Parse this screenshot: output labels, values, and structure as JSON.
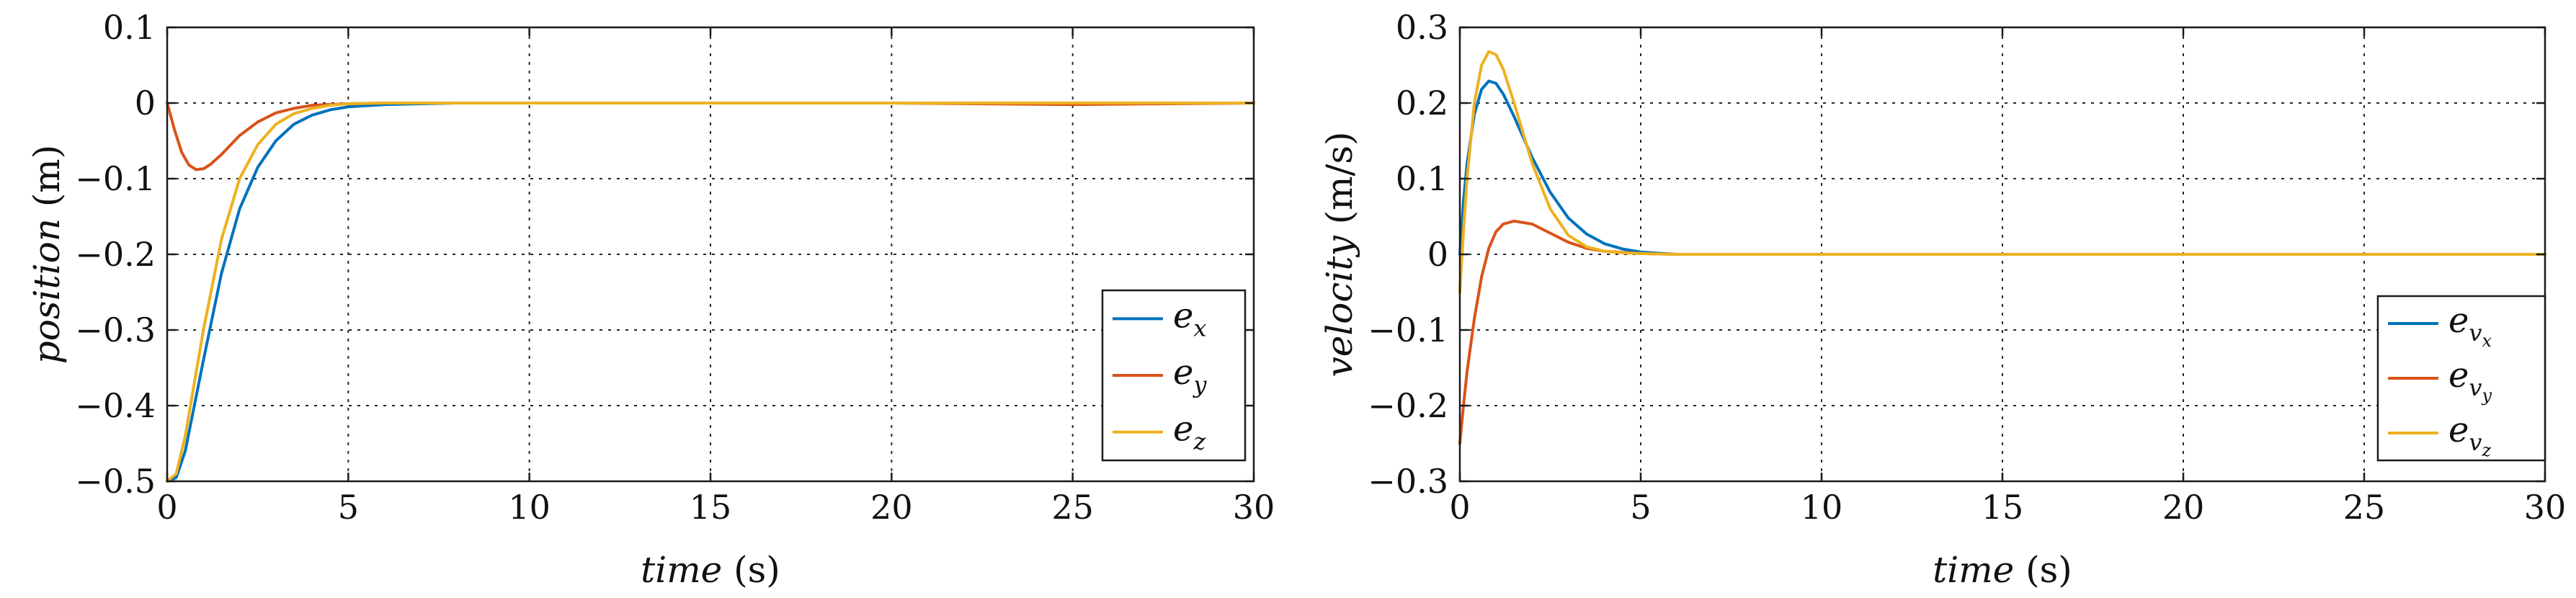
{
  "chart_data": [
    {
      "type": "line",
      "title": "",
      "xlabel": {
        "italic": "time",
        "unit": "(s)"
      },
      "ylabel": {
        "italic": "position",
        "unit": "(m)"
      },
      "xlim": [
        0,
        30
      ],
      "ylim": [
        -0.5,
        0.1
      ],
      "xticks": [
        0,
        5,
        10,
        15,
        20,
        25,
        30
      ],
      "yticks": [
        0.1,
        0,
        -0.1,
        -0.2,
        -0.3,
        -0.4,
        -0.5
      ],
      "xtick_labels": [
        "0",
        "5",
        "10",
        "15",
        "20",
        "25",
        "30"
      ],
      "ytick_labels": [
        "0.1",
        "0",
        "−0.1",
        "−0.2",
        "−0.3",
        "−0.4",
        "−0.5"
      ],
      "grid": true,
      "legend": "bottom-right",
      "series": [
        {
          "name": "e",
          "subscript": "x",
          "color": "#0072BD",
          "x": [
            0,
            0.25,
            0.5,
            0.75,
            1,
            1.5,
            2,
            2.5,
            3,
            3.5,
            4,
            4.5,
            5,
            6,
            7,
            8,
            10,
            12,
            15,
            20,
            25,
            30
          ],
          "y": [
            -0.5,
            -0.495,
            -0.46,
            -0.4,
            -0.34,
            -0.225,
            -0.14,
            -0.085,
            -0.05,
            -0.028,
            -0.016,
            -0.009,
            -0.005,
            -0.002,
            -0.001,
            0,
            0,
            0,
            0,
            0,
            -0.001,
            0
          ]
        },
        {
          "name": "e",
          "subscript": "y",
          "color": "#D95319",
          "x": [
            0,
            0.2,
            0.4,
            0.6,
            0.8,
            1,
            1.2,
            1.5,
            2,
            2.5,
            3,
            3.5,
            4,
            5,
            6,
            8,
            10,
            15,
            20,
            25,
            30
          ],
          "y": [
            0,
            -0.035,
            -0.065,
            -0.082,
            -0.088,
            -0.087,
            -0.081,
            -0.068,
            -0.043,
            -0.025,
            -0.013,
            -0.007,
            -0.003,
            -0.001,
            0,
            0,
            0,
            0,
            0,
            -0.002,
            0
          ]
        },
        {
          "name": "e",
          "subscript": "z",
          "color": "#EDB120",
          "x": [
            0,
            0.25,
            0.5,
            0.75,
            1,
            1.5,
            2,
            2.5,
            3,
            3.5,
            4,
            4.5,
            5,
            6,
            8,
            10,
            15,
            20,
            25,
            30
          ],
          "y": [
            -0.5,
            -0.49,
            -0.44,
            -0.37,
            -0.3,
            -0.18,
            -0.1,
            -0.055,
            -0.028,
            -0.014,
            -0.007,
            -0.003,
            -0.001,
            0,
            0,
            0,
            0,
            0,
            0,
            0
          ]
        }
      ]
    },
    {
      "type": "line",
      "title": "",
      "xlabel": {
        "italic": "time",
        "unit": "(s)"
      },
      "ylabel": {
        "italic": "velocity",
        "unit": "(m/s)"
      },
      "xlim": [
        0,
        30
      ],
      "ylim": [
        -0.3,
        0.3
      ],
      "xticks": [
        0,
        5,
        10,
        15,
        20,
        25,
        30
      ],
      "yticks": [
        0.3,
        0.2,
        0.1,
        0,
        -0.1,
        -0.2,
        -0.3
      ],
      "xtick_labels": [
        "0",
        "5",
        "10",
        "15",
        "20",
        "25",
        "30"
      ],
      "ytick_labels": [
        "0.3",
        "0.2",
        "0.1",
        "0",
        "−0.1",
        "−0.2",
        "−0.3"
      ],
      "grid": true,
      "legend": "bottom-right",
      "series": [
        {
          "name": "e",
          "subscript": "v",
          "subsubscript": "x",
          "color": "#0072BD",
          "x": [
            0,
            0.1,
            0.2,
            0.4,
            0.6,
            0.8,
            1,
            1.2,
            1.5,
            2,
            2.5,
            3,
            3.5,
            4,
            4.5,
            5,
            6,
            8,
            10,
            15,
            20,
            25,
            30
          ],
          "y": [
            0,
            0.07,
            0.12,
            0.185,
            0.218,
            0.229,
            0.226,
            0.212,
            0.182,
            0.128,
            0.082,
            0.048,
            0.027,
            0.014,
            0.007,
            0.003,
            0,
            0,
            0,
            0,
            0,
            0,
            0
          ]
        },
        {
          "name": "e",
          "subscript": "v",
          "subsubscript": "y",
          "color": "#D95319",
          "x": [
            0,
            0.1,
            0.2,
            0.4,
            0.6,
            0.8,
            1,
            1.2,
            1.5,
            2,
            2.5,
            3,
            3.5,
            4,
            5,
            6,
            8,
            10,
            15,
            20,
            25,
            30
          ],
          "y": [
            -0.25,
            -0.2,
            -0.155,
            -0.085,
            -0.03,
            0.008,
            0.03,
            0.04,
            0.044,
            0.04,
            0.028,
            0.016,
            0.008,
            0.004,
            0.001,
            0,
            0,
            0,
            0,
            0,
            0,
            0
          ]
        },
        {
          "name": "e",
          "subscript": "v",
          "subsubscript": "z",
          "color": "#EDB120",
          "x": [
            0,
            0.1,
            0.2,
            0.4,
            0.6,
            0.8,
            1,
            1.2,
            1.5,
            2,
            2.5,
            3,
            3.5,
            4,
            4.5,
            5,
            6,
            8,
            10,
            15,
            20,
            25,
            30
          ],
          "y": [
            -0.05,
            0.03,
            0.1,
            0.2,
            0.25,
            0.268,
            0.264,
            0.245,
            0.2,
            0.12,
            0.06,
            0.025,
            0.01,
            0.004,
            0.002,
            0.001,
            0,
            0,
            0,
            0,
            0,
            0,
            0
          ]
        }
      ]
    }
  ]
}
